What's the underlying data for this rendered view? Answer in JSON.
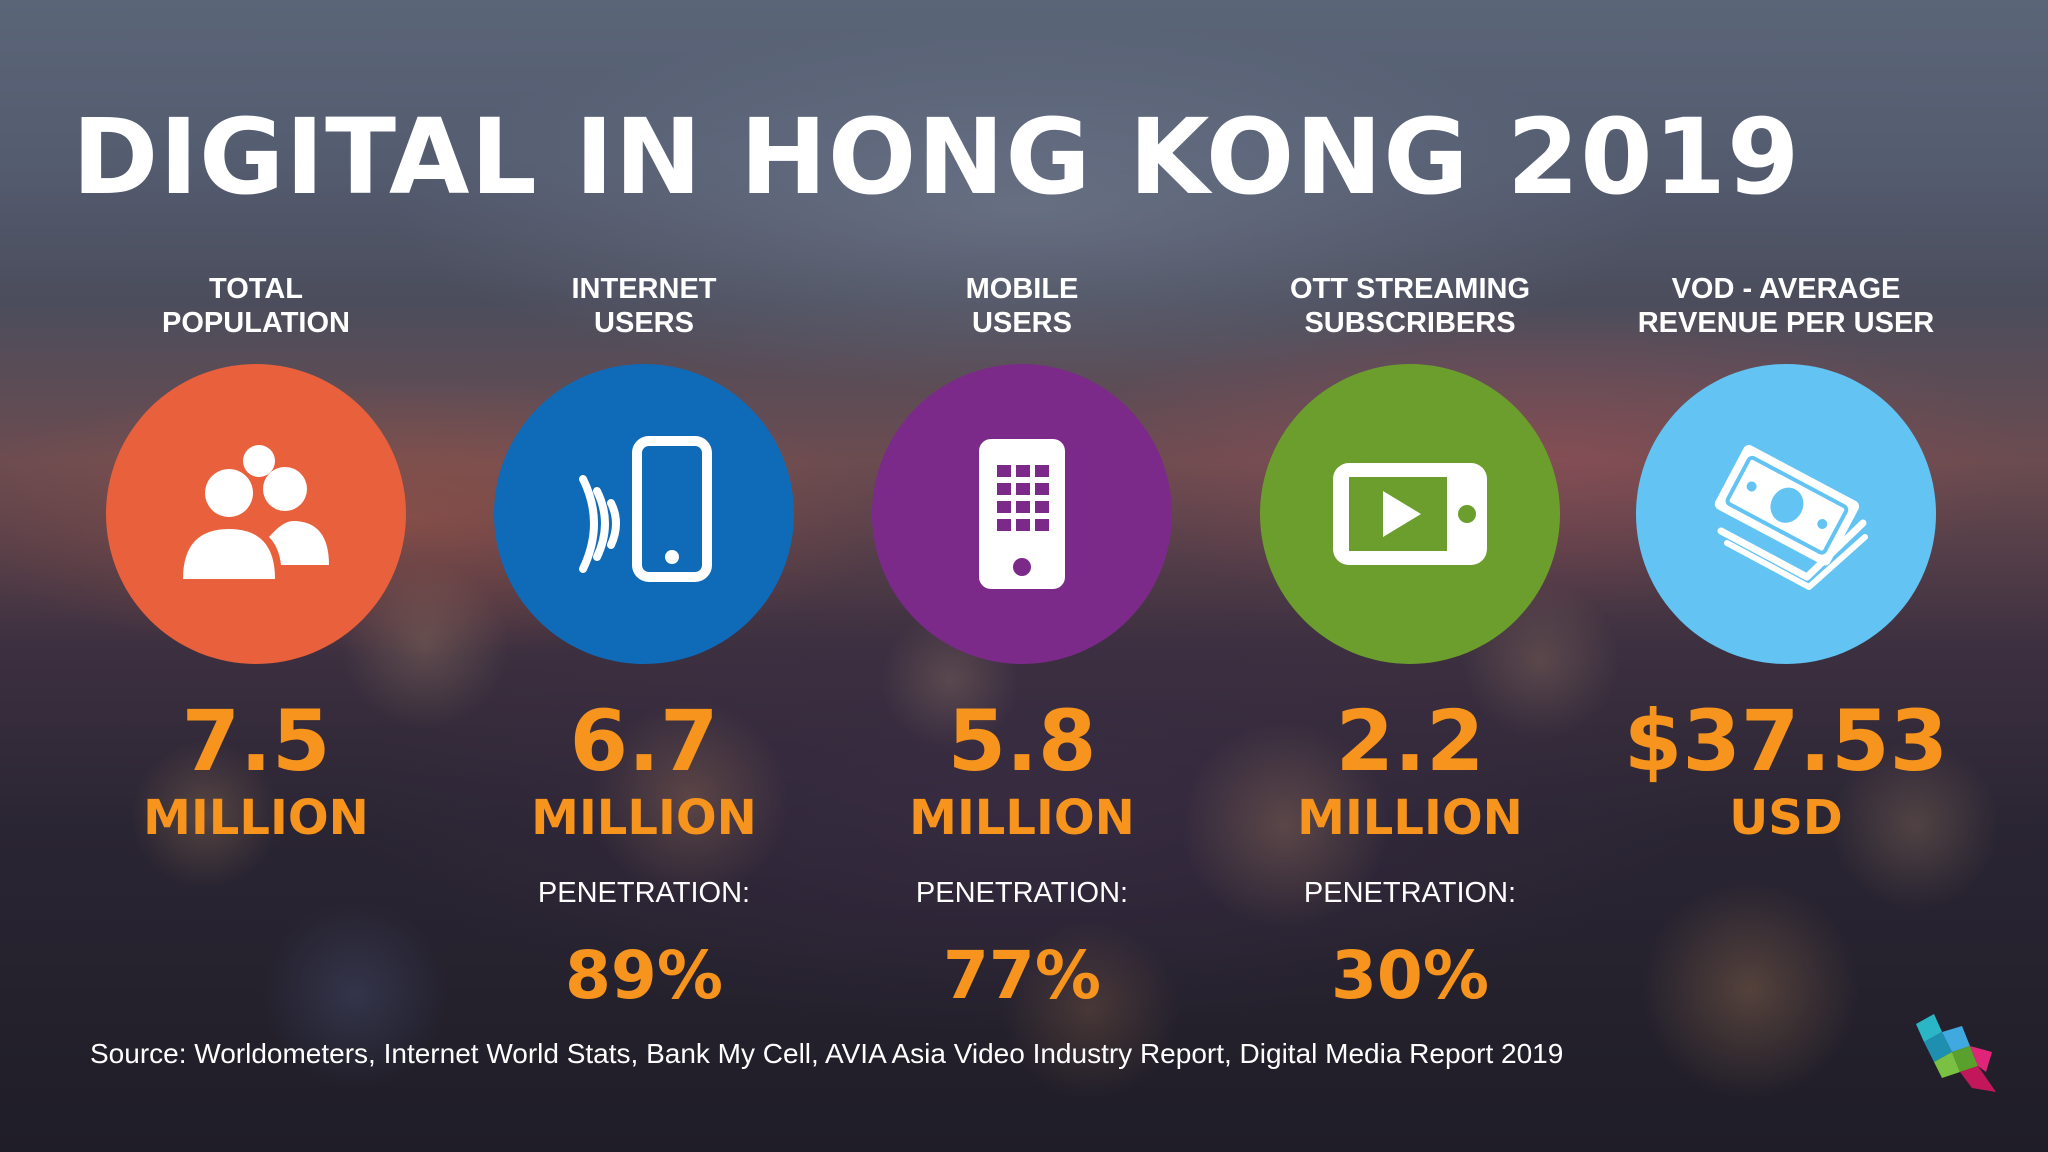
{
  "title": "DIGITAL IN HONG KONG 2019",
  "stats": [
    {
      "label": "TOTAL\nPOPULATION",
      "icon": "people-icon",
      "color": "#e8603c",
      "value": "7.5",
      "unit": "MILLION",
      "penetration_label": "",
      "penetration_value": ""
    },
    {
      "label": "INTERNET\nUSERS",
      "icon": "phone-signal-icon",
      "color": "#0f6ab8",
      "value": "6.7",
      "unit": "MILLION",
      "penetration_label": "PENETRATION:",
      "penetration_value": "89%"
    },
    {
      "label": "MOBILE\nUSERS",
      "icon": "mobile-phone-icon",
      "color": "#7b2a8a",
      "value": "5.8",
      "unit": "MILLION",
      "penetration_label": "PENETRATION:",
      "penetration_value": "77%"
    },
    {
      "label": "OTT STREAMING\nSUBSCRIBERS",
      "icon": "video-player-icon",
      "color": "#6c9e2e",
      "value": "2.2",
      "unit": "MILLION",
      "penetration_label": "PENETRATION:",
      "penetration_value": "30%"
    },
    {
      "label": "VOD - AVERAGE\nREVENUE PER USER",
      "icon": "money-stack-icon",
      "color": "#63c4f4",
      "value": "$37.53",
      "unit": "USD",
      "penetration_label": "",
      "penetration_value": ""
    }
  ],
  "source": "Source: Worldometers, Internet World Stats, Bank My Cell, AVIA Asia Video Industry Report, Digital Media Report 2019",
  "logo": "cube-logo-icon",
  "accent_color": "#f7941d"
}
